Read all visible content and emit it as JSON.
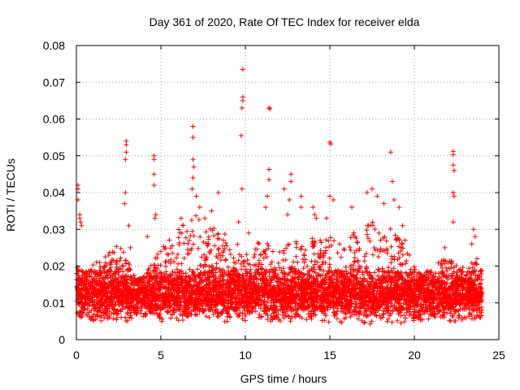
{
  "chart_data": {
    "type": "scatter",
    "title": "Day 361 of 2020, Rate Of TEC Index for receiver elda",
    "xlabel": "GPS time / hours",
    "ylabel": "ROTI / TECUs",
    "xlim": [
      0,
      25
    ],
    "ylim": [
      0,
      0.08
    ],
    "xticks": [
      "0",
      "5",
      "10",
      "15",
      "20",
      "25"
    ],
    "yticks": [
      "0",
      "0.01",
      "0.02",
      "0.03",
      "0.04",
      "0.05",
      "0.06",
      "0.07",
      "0.08"
    ],
    "grid": true,
    "marker": "+",
    "color": "#ff0000",
    "series": [
      {
        "values": [
          [
            0.1,
            0.041
          ],
          [
            0.1,
            0.042
          ],
          [
            0.1,
            0.038
          ],
          [
            0.2,
            0.034
          ],
          [
            0.2,
            0.033
          ],
          [
            0.25,
            0.032
          ],
          [
            0.3,
            0.031
          ],
          [
            2.95,
            0.054
          ],
          [
            2.95,
            0.053
          ],
          [
            2.95,
            0.051
          ],
          [
            2.9,
            0.049
          ],
          [
            2.9,
            0.04
          ],
          [
            2.85,
            0.037
          ],
          [
            3.1,
            0.031
          ],
          [
            3.2,
            0.025
          ],
          [
            4.6,
            0.05
          ],
          [
            4.6,
            0.049
          ],
          [
            4.6,
            0.045
          ],
          [
            4.6,
            0.042
          ],
          [
            4.7,
            0.034
          ],
          [
            4.65,
            0.033
          ],
          [
            4.2,
            0.028
          ],
          [
            5.0,
            0.024
          ],
          [
            6.2,
            0.033
          ],
          [
            6.9,
            0.058
          ],
          [
            6.9,
            0.055
          ],
          [
            6.9,
            0.049
          ],
          [
            6.95,
            0.047
          ],
          [
            6.9,
            0.044
          ],
          [
            6.85,
            0.041
          ],
          [
            7.1,
            0.039
          ],
          [
            7.3,
            0.036
          ],
          [
            7.6,
            0.033
          ],
          [
            8.0,
            0.035
          ],
          [
            8.4,
            0.04
          ],
          [
            9.6,
            0.032
          ],
          [
            9.85,
            0.0735
          ],
          [
            9.85,
            0.066
          ],
          [
            9.85,
            0.065
          ],
          [
            9.8,
            0.063
          ],
          [
            9.75,
            0.0555
          ],
          [
            9.8,
            0.041
          ],
          [
            10.2,
            0.029
          ],
          [
            11.4,
            0.063
          ],
          [
            11.45,
            0.0628
          ],
          [
            11.4,
            0.0463
          ],
          [
            11.4,
            0.0435
          ],
          [
            11.3,
            0.039
          ],
          [
            11.2,
            0.036
          ],
          [
            12.3,
            0.041
          ],
          [
            12.7,
            0.045
          ],
          [
            12.7,
            0.043
          ],
          [
            12.6,
            0.038
          ],
          [
            12.5,
            0.034
          ],
          [
            13.3,
            0.039
          ],
          [
            13.3,
            0.036
          ],
          [
            14.0,
            0.036
          ],
          [
            14.1,
            0.034
          ],
          [
            14.2,
            0.033
          ],
          [
            14.8,
            0.033
          ],
          [
            15.0,
            0.0537
          ],
          [
            15.05,
            0.0532
          ],
          [
            15.0,
            0.039
          ],
          [
            15.2,
            0.038
          ],
          [
            16.3,
            0.036
          ],
          [
            17.2,
            0.04
          ],
          [
            17.5,
            0.041
          ],
          [
            17.8,
            0.039
          ],
          [
            18.2,
            0.037
          ],
          [
            18.6,
            0.051
          ],
          [
            18.7,
            0.043
          ],
          [
            18.8,
            0.038
          ],
          [
            19.1,
            0.036
          ],
          [
            19.3,
            0.031
          ],
          [
            22.3,
            0.0512
          ],
          [
            22.3,
            0.0503
          ],
          [
            22.3,
            0.0475
          ],
          [
            22.35,
            0.046
          ],
          [
            22.3,
            0.04
          ],
          [
            22.35,
            0.039
          ],
          [
            22.3,
            0.032
          ],
          [
            21.8,
            0.025
          ],
          [
            23.5,
            0.03
          ],
          [
            23.6,
            0.028
          ],
          [
            23.4,
            0.026
          ],
          [
            23.7,
            0.022
          ]
        ],
        "band": [
          [
            0.0,
            0.006,
            0.02
          ],
          [
            0.5,
            0.006,
            0.018
          ],
          [
            1.0,
            0.005,
            0.022
          ],
          [
            1.5,
            0.005,
            0.023
          ],
          [
            2.0,
            0.006,
            0.024
          ],
          [
            2.5,
            0.005,
            0.026
          ],
          [
            3.0,
            0.005,
            0.024
          ],
          [
            3.5,
            0.006,
            0.016
          ],
          [
            4.0,
            0.006,
            0.017
          ],
          [
            4.5,
            0.006,
            0.022
          ],
          [
            5.0,
            0.005,
            0.024
          ],
          [
            5.5,
            0.004,
            0.028
          ],
          [
            6.0,
            0.005,
            0.03
          ],
          [
            6.5,
            0.005,
            0.033
          ],
          [
            7.0,
            0.006,
            0.036
          ],
          [
            7.5,
            0.006,
            0.03
          ],
          [
            8.0,
            0.005,
            0.031
          ],
          [
            8.5,
            0.005,
            0.03
          ],
          [
            9.0,
            0.004,
            0.028
          ],
          [
            9.5,
            0.004,
            0.027
          ],
          [
            10.0,
            0.005,
            0.024
          ],
          [
            10.5,
            0.006,
            0.025
          ],
          [
            11.0,
            0.006,
            0.028
          ],
          [
            11.5,
            0.005,
            0.026
          ],
          [
            12.0,
            0.005,
            0.025
          ],
          [
            12.5,
            0.005,
            0.026
          ],
          [
            13.0,
            0.005,
            0.027
          ],
          [
            13.5,
            0.004,
            0.026
          ],
          [
            14.0,
            0.004,
            0.028
          ],
          [
            14.5,
            0.004,
            0.027
          ],
          [
            15.0,
            0.004,
            0.029
          ],
          [
            15.5,
            0.005,
            0.026
          ],
          [
            16.0,
            0.004,
            0.027
          ],
          [
            16.5,
            0.004,
            0.03
          ],
          [
            17.0,
            0.004,
            0.031
          ],
          [
            17.5,
            0.004,
            0.033
          ],
          [
            18.0,
            0.004,
            0.03
          ],
          [
            18.5,
            0.004,
            0.031
          ],
          [
            19.0,
            0.004,
            0.028
          ],
          [
            19.5,
            0.005,
            0.027
          ],
          [
            20.0,
            0.005,
            0.02
          ],
          [
            20.5,
            0.005,
            0.017
          ],
          [
            21.0,
            0.005,
            0.02
          ],
          [
            21.5,
            0.005,
            0.022
          ],
          [
            22.0,
            0.005,
            0.022
          ],
          [
            22.5,
            0.005,
            0.021
          ],
          [
            23.0,
            0.005,
            0.02
          ],
          [
            23.5,
            0.005,
            0.022
          ],
          [
            24.0,
            0.005,
            0.02
          ]
        ]
      }
    ]
  }
}
